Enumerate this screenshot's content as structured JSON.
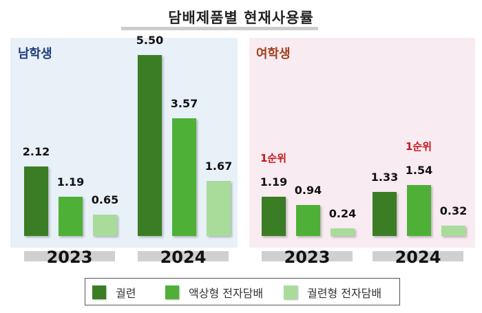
{
  "chart_data": {
    "type": "bar",
    "title": "담배제품별 현재사용률",
    "legend": [
      "궐련",
      "액상형 전자담배",
      "궐련형 전자담배"
    ],
    "colors": [
      "#3b7d24",
      "#4fb038",
      "#a9dc9a"
    ],
    "panels": [
      {
        "name": "남학생",
        "label_color": "#1f3d7a",
        "groups": [
          {
            "year": "2023",
            "values": [
              2.12,
              1.19,
              0.65
            ],
            "value_labels": [
              "2.12",
              "1.19",
              "0.65"
            ],
            "rank_label": null
          },
          {
            "year": "2024",
            "values": [
              5.5,
              3.57,
              1.67
            ],
            "value_labels": [
              "5.50",
              "3.57",
              "1.67"
            ],
            "rank_label": null
          }
        ]
      },
      {
        "name": "여학생",
        "label_color": "#a0401c",
        "groups": [
          {
            "year": "2023",
            "values": [
              1.19,
              0.94,
              0.24
            ],
            "value_labels": [
              "1.19",
              "0.94",
              "0.24"
            ],
            "rank_label": "1순위",
            "rank_index": 0
          },
          {
            "year": "2024",
            "values": [
              1.33,
              1.54,
              0.32
            ],
            "value_labels": [
              "1.33",
              "1.54",
              "0.32"
            ],
            "rank_label": "1순위",
            "rank_index": 1
          }
        ]
      }
    ],
    "legend_placement": "bottom"
  }
}
